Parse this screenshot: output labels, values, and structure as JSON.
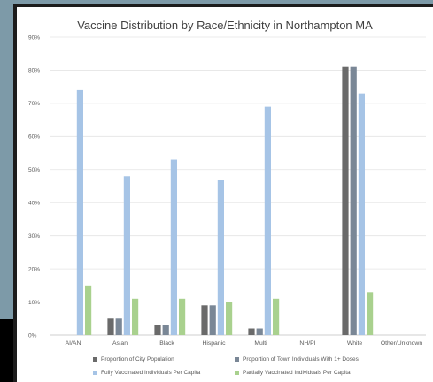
{
  "chart_data": {
    "type": "bar",
    "title": "Vaccine Distribution by Race/Ethnicity in Northampton MA",
    "categories": [
      "AI/AN",
      "Asian",
      "Black",
      "Hispanic",
      "Multi",
      "NH/PI",
      "White",
      "Other/Unknown"
    ],
    "ylim": [
      0,
      90
    ],
    "y_ticks": [
      "0%",
      "10%",
      "20%",
      "30%",
      "40%",
      "50%",
      "60%",
      "70%",
      "80%",
      "90%"
    ],
    "y_tick_values": [
      0,
      10,
      20,
      30,
      40,
      50,
      60,
      70,
      80,
      90
    ],
    "legend_position": "bottom",
    "series": [
      {
        "name": "Proportion of City Population",
        "color": "#6a6a6a",
        "values": [
          0,
          5,
          3,
          9,
          2,
          0,
          81,
          0
        ]
      },
      {
        "name": "Proportion of Town Individuals With 1+ Doses",
        "color": "#7a8796",
        "values": [
          0,
          5,
          3,
          9,
          2,
          0,
          81,
          0
        ]
      },
      {
        "name": "Fully Vaccinated Individuals Per Capita",
        "color": "#a6c4e6",
        "values": [
          74,
          48,
          53,
          47,
          69,
          0,
          73,
          0
        ]
      },
      {
        "name": "Partially Vaccinated Individuals Per Capita",
        "color": "#a9d18e",
        "values": [
          15,
          11,
          11,
          10,
          11,
          0,
          13,
          0
        ]
      }
    ]
  }
}
